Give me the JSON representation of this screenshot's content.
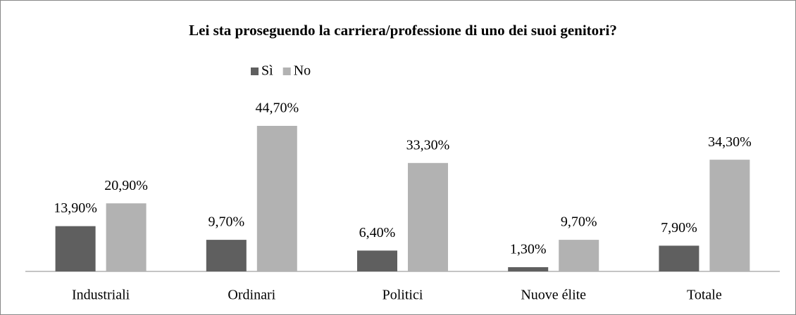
{
  "chart_data": {
    "type": "bar",
    "title": "Lei sta proseguendo la carriera/professione di uno dei suoi genitori?",
    "categories": [
      "Industriali",
      "Ordinari",
      "Politici",
      "Nuove élite",
      "Totale"
    ],
    "series": [
      {
        "name": "Sì",
        "color": "#5f5f5f",
        "values": [
          13.9,
          9.7,
          6.4,
          1.3,
          7.9
        ],
        "value_labels": [
          "13,90%",
          "9,70%",
          "6,40%",
          "1,30%",
          "7,90%"
        ]
      },
      {
        "name": "No",
        "color": "#b2b2b2",
        "values": [
          20.9,
          44.7,
          33.3,
          9.7,
          34.3
        ],
        "value_labels": [
          "20,90%",
          "44,70%",
          "33,30%",
          "9,70%",
          "34,30%"
        ]
      }
    ],
    "legend": "top"
  }
}
